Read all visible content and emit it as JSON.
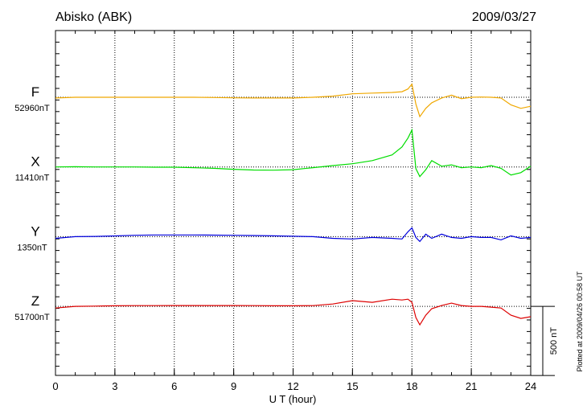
{
  "chart_data": {
    "type": "line",
    "title": "Abisko (ABK)",
    "date": "2009/03/27",
    "x_label": "U T (hour)",
    "footnote": "Plotted at 2009/04/26 00:58 UT",
    "xlim": [
      0,
      24
    ],
    "xticks": [
      0,
      3,
      6,
      9,
      12,
      15,
      18,
      21,
      24
    ],
    "grid": true,
    "scale_bar": {
      "value": 500,
      "label": "500 nT"
    },
    "x": [
      0,
      1,
      2,
      3,
      4,
      5,
      6,
      7,
      8,
      9,
      10,
      11,
      12,
      13,
      14,
      15,
      16,
      17,
      17.5,
      17.8,
      18,
      18.2,
      18.4,
      18.7,
      19,
      19.5,
      20,
      20.5,
      21,
      21.5,
      22,
      22.5,
      23,
      23.5,
      24
    ],
    "series": [
      {
        "name": "F",
        "color": "#f0a800",
        "baseline": 52960,
        "baseline_label": "52960nT",
        "values": [
          52955,
          52960,
          52960,
          52960,
          52960,
          52960,
          52960,
          52960,
          52958,
          52956,
          52955,
          52955,
          52955,
          52960,
          52968,
          52985,
          52990,
          52995,
          53000,
          53020,
          53055,
          52910,
          52820,
          52880,
          52920,
          52955,
          52975,
          52950,
          52960,
          52962,
          52960,
          52955,
          52905,
          52880,
          52895
        ]
      },
      {
        "name": "X",
        "color": "#00dd00",
        "baseline": 11410,
        "baseline_label": "11410nT",
        "values": [
          11410,
          11412,
          11410,
          11410,
          11410,
          11408,
          11408,
          11405,
          11400,
          11393,
          11388,
          11387,
          11390,
          11405,
          11420,
          11433,
          11456,
          11497,
          11555,
          11619,
          11677,
          11398,
          11340,
          11390,
          11456,
          11415,
          11425,
          11405,
          11410,
          11405,
          11420,
          11400,
          11352,
          11369,
          11416
        ]
      },
      {
        "name": "Y",
        "color": "#0000dd",
        "baseline": 1350,
        "baseline_label": "1350nT",
        "values": [
          1338,
          1350,
          1352,
          1355,
          1360,
          1362,
          1362,
          1362,
          1361,
          1360,
          1358,
          1356,
          1353,
          1350,
          1338,
          1333,
          1344,
          1338,
          1333,
          1385,
          1414,
          1344,
          1315,
          1368,
          1338,
          1368,
          1344,
          1338,
          1350,
          1344,
          1344,
          1327,
          1356,
          1338,
          1344
        ]
      },
      {
        "name": "Z",
        "color": "#dd0000",
        "baseline": 51700,
        "baseline_label": "51700nT",
        "values": [
          51688,
          51700,
          51702,
          51704,
          51705,
          51705,
          51706,
          51706,
          51706,
          51706,
          51705,
          51704,
          51704,
          51705,
          51717,
          51741,
          51729,
          51752,
          51746,
          51752,
          51729,
          51619,
          51566,
          51636,
          51683,
          51706,
          51723,
          51706,
          51700,
          51700,
          51694,
          51688,
          51636,
          51613,
          51625
        ]
      }
    ]
  }
}
